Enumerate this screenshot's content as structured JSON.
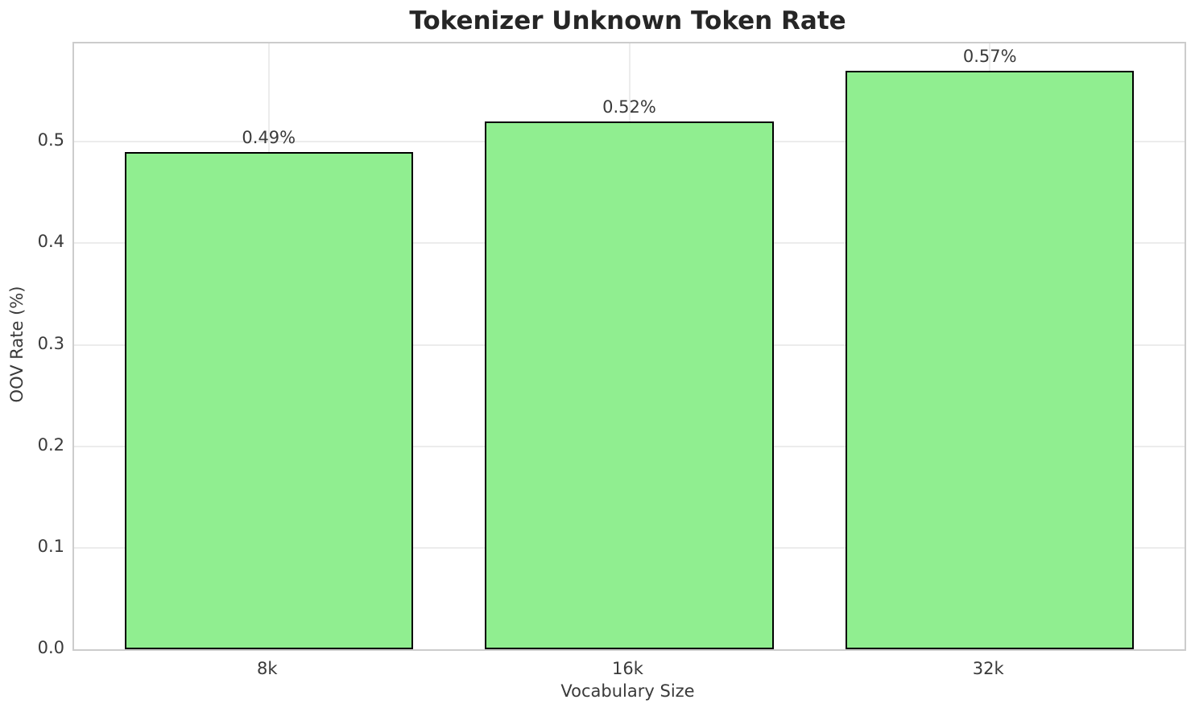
{
  "chart_data": {
    "type": "bar",
    "title": "Tokenizer Unknown Token Rate",
    "xlabel": "Vocabulary Size",
    "ylabel": "OOV Rate (%)",
    "categories": [
      "8k",
      "16k",
      "32k"
    ],
    "values": [
      0.49,
      0.52,
      0.57
    ],
    "bar_labels": [
      "0.49%",
      "0.52%",
      "0.57%"
    ],
    "yticks": [
      0.0,
      0.1,
      0.2,
      0.3,
      0.4,
      0.5
    ],
    "ytick_labels": [
      "0.0",
      "0.1",
      "0.2",
      "0.3",
      "0.4",
      "0.5"
    ],
    "ylim": [
      0,
      0.597
    ],
    "grid": true,
    "legend": "none",
    "style": {
      "bar_color": "#90ee90",
      "bar_edge_color": "#000000",
      "grid_color": "#ececec",
      "spine_color": "#cccccc",
      "text_color": "#3a3a3a",
      "title_color": "#262626"
    }
  }
}
